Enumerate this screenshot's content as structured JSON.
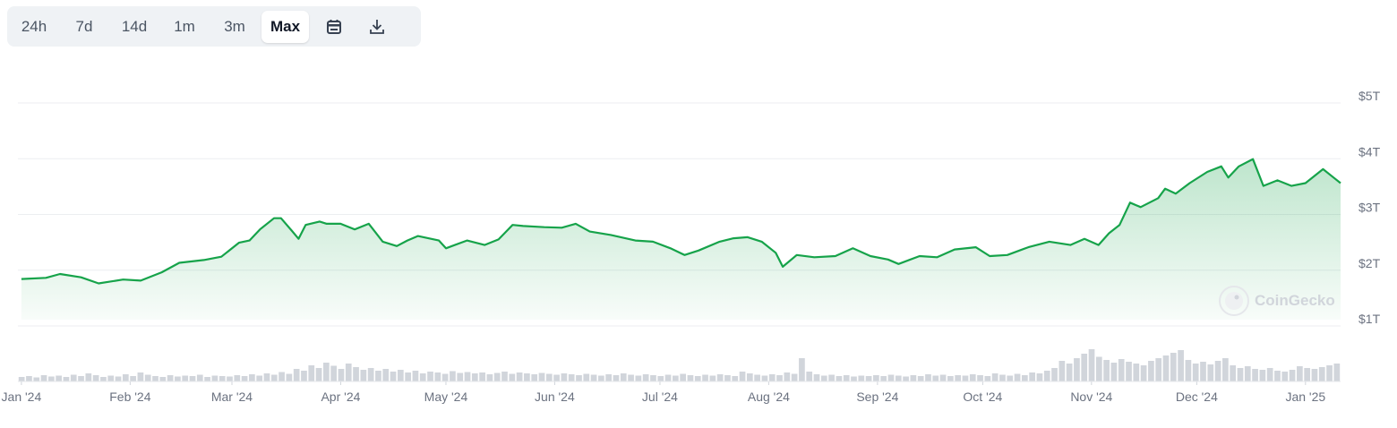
{
  "range_selector": {
    "options": [
      "24h",
      "7d",
      "14d",
      "1m",
      "3m",
      "Max"
    ],
    "selected": "Max",
    "calendar_icon": "calendar-icon",
    "download_icon": "download-icon"
  },
  "watermark": {
    "text": "CoinGecko",
    "icon": "coingecko-logo-icon"
  },
  "chart_data": {
    "type": "area",
    "title": "",
    "series": [
      {
        "color": "#16a34a",
        "points": [
          [
            "2024-01-01",
            1.73
          ],
          [
            "2024-01-08",
            1.75
          ],
          [
            "2024-01-12",
            1.82
          ],
          [
            "2024-01-18",
            1.76
          ],
          [
            "2024-01-23",
            1.65
          ],
          [
            "2024-01-30",
            1.72
          ],
          [
            "2024-02-04",
            1.7
          ],
          [
            "2024-02-10",
            1.85
          ],
          [
            "2024-02-15",
            2.02
          ],
          [
            "2024-02-22",
            2.07
          ],
          [
            "2024-02-27",
            2.13
          ],
          [
            "2024-03-03",
            2.38
          ],
          [
            "2024-03-06",
            2.42
          ],
          [
            "2024-03-09",
            2.62
          ],
          [
            "2024-03-13",
            2.82
          ],
          [
            "2024-03-15",
            2.82
          ],
          [
            "2024-03-18",
            2.6
          ],
          [
            "2024-03-20",
            2.45
          ],
          [
            "2024-03-22",
            2.7
          ],
          [
            "2024-03-26",
            2.76
          ],
          [
            "2024-03-28",
            2.72
          ],
          [
            "2024-04-01",
            2.72
          ],
          [
            "2024-04-05",
            2.62
          ],
          [
            "2024-04-09",
            2.72
          ],
          [
            "2024-04-13",
            2.4
          ],
          [
            "2024-04-17",
            2.32
          ],
          [
            "2024-04-20",
            2.42
          ],
          [
            "2024-04-23",
            2.5
          ],
          [
            "2024-04-29",
            2.42
          ],
          [
            "2024-05-01",
            2.28
          ],
          [
            "2024-05-07",
            2.42
          ],
          [
            "2024-05-12",
            2.34
          ],
          [
            "2024-05-16",
            2.44
          ],
          [
            "2024-05-20",
            2.7
          ],
          [
            "2024-05-23",
            2.68
          ],
          [
            "2024-05-29",
            2.66
          ],
          [
            "2024-06-03",
            2.65
          ],
          [
            "2024-06-07",
            2.72
          ],
          [
            "2024-06-11",
            2.58
          ],
          [
            "2024-06-17",
            2.52
          ],
          [
            "2024-06-24",
            2.42
          ],
          [
            "2024-06-29",
            2.4
          ],
          [
            "2024-07-04",
            2.28
          ],
          [
            "2024-07-08",
            2.16
          ],
          [
            "2024-07-12",
            2.24
          ],
          [
            "2024-07-18",
            2.4
          ],
          [
            "2024-07-22",
            2.46
          ],
          [
            "2024-07-26",
            2.48
          ],
          [
            "2024-07-30",
            2.4
          ],
          [
            "2024-08-03",
            2.2
          ],
          [
            "2024-08-05",
            1.95
          ],
          [
            "2024-08-09",
            2.16
          ],
          [
            "2024-08-14",
            2.12
          ],
          [
            "2024-08-20",
            2.14
          ],
          [
            "2024-08-25",
            2.28
          ],
          [
            "2024-08-30",
            2.14
          ],
          [
            "2024-09-04",
            2.08
          ],
          [
            "2024-09-07",
            2.0
          ],
          [
            "2024-09-13",
            2.14
          ],
          [
            "2024-09-18",
            2.12
          ],
          [
            "2024-09-23",
            2.26
          ],
          [
            "2024-09-29",
            2.3
          ],
          [
            "2024-10-03",
            2.14
          ],
          [
            "2024-10-08",
            2.16
          ],
          [
            "2024-10-14",
            2.3
          ],
          [
            "2024-10-20",
            2.4
          ],
          [
            "2024-10-26",
            2.34
          ],
          [
            "2024-10-30",
            2.45
          ],
          [
            "2024-11-03",
            2.34
          ],
          [
            "2024-11-06",
            2.55
          ],
          [
            "2024-11-09",
            2.7
          ],
          [
            "2024-11-12",
            3.1
          ],
          [
            "2024-11-15",
            3.02
          ],
          [
            "2024-11-20",
            3.18
          ],
          [
            "2024-11-22",
            3.35
          ],
          [
            "2024-11-25",
            3.26
          ],
          [
            "2024-11-29",
            3.45
          ],
          [
            "2024-12-04",
            3.65
          ],
          [
            "2024-12-08",
            3.75
          ],
          [
            "2024-12-10",
            3.55
          ],
          [
            "2024-12-13",
            3.75
          ],
          [
            "2024-12-17",
            3.88
          ],
          [
            "2024-12-20",
            3.4
          ],
          [
            "2024-12-24",
            3.5
          ],
          [
            "2024-12-28",
            3.4
          ],
          [
            "2025-01-01",
            3.45
          ],
          [
            "2025-01-06",
            3.7
          ],
          [
            "2025-01-09",
            3.55
          ],
          [
            "2025-01-11",
            3.45
          ]
        ]
      }
    ],
    "volume": {
      "color": "#d1d5db",
      "values": [
        0.1,
        0.12,
        0.09,
        0.14,
        0.11,
        0.13,
        0.1,
        0.15,
        0.12,
        0.18,
        0.14,
        0.1,
        0.13,
        0.11,
        0.16,
        0.12,
        0.2,
        0.15,
        0.12,
        0.1,
        0.14,
        0.11,
        0.13,
        0.12,
        0.15,
        0.1,
        0.13,
        0.12,
        0.11,
        0.14,
        0.12,
        0.16,
        0.13,
        0.18,
        0.15,
        0.21,
        0.17,
        0.28,
        0.24,
        0.36,
        0.3,
        0.42,
        0.35,
        0.28,
        0.4,
        0.32,
        0.26,
        0.3,
        0.24,
        0.28,
        0.22,
        0.26,
        0.2,
        0.24,
        0.18,
        0.22,
        0.2,
        0.17,
        0.23,
        0.19,
        0.21,
        0.18,
        0.2,
        0.16,
        0.19,
        0.22,
        0.17,
        0.2,
        0.18,
        0.16,
        0.19,
        0.17,
        0.15,
        0.18,
        0.16,
        0.14,
        0.17,
        0.15,
        0.13,
        0.16,
        0.14,
        0.18,
        0.15,
        0.13,
        0.16,
        0.14,
        0.12,
        0.15,
        0.13,
        0.17,
        0.14,
        0.12,
        0.15,
        0.13,
        0.16,
        0.14,
        0.12,
        0.22,
        0.18,
        0.15,
        0.13,
        0.16,
        0.14,
        0.2,
        0.17,
        0.52,
        0.22,
        0.16,
        0.13,
        0.15,
        0.12,
        0.14,
        0.11,
        0.13,
        0.12,
        0.14,
        0.12,
        0.15,
        0.13,
        0.11,
        0.14,
        0.12,
        0.16,
        0.13,
        0.15,
        0.12,
        0.14,
        0.13,
        0.16,
        0.14,
        0.12,
        0.18,
        0.15,
        0.13,
        0.17,
        0.14,
        0.2,
        0.18,
        0.24,
        0.3,
        0.46,
        0.4,
        0.52,
        0.62,
        0.72,
        0.55,
        0.48,
        0.42,
        0.5,
        0.44,
        0.4,
        0.36,
        0.46,
        0.52,
        0.58,
        0.64,
        0.7,
        0.48,
        0.4,
        0.44,
        0.38,
        0.46,
        0.52,
        0.36,
        0.3,
        0.34,
        0.28,
        0.26,
        0.3,
        0.24,
        0.22,
        0.26,
        0.34,
        0.3,
        0.28,
        0.32,
        0.36,
        0.4
      ]
    },
    "x_tick_labels": [
      "Jan '24",
      "Feb '24",
      "Mar '24",
      "Apr '24",
      "May '24",
      "Jun '24",
      "Jul '24",
      "Aug '24",
      "Sep '24",
      "Oct '24",
      "Nov '24",
      "Dec '24",
      "Jan '25"
    ],
    "x_tick_dates": [
      "2024-01-01",
      "2024-02-01",
      "2024-03-01",
      "2024-04-01",
      "2024-05-01",
      "2024-06-01",
      "2024-07-01",
      "2024-08-01",
      "2024-09-01",
      "2024-10-01",
      "2024-11-01",
      "2024-12-01",
      "2025-01-01"
    ],
    "x_range": [
      "2023-12-31",
      "2025-01-11"
    ],
    "y_tick_labels": [
      "$1T",
      "$2T",
      "$3T",
      "$4T",
      "$5T"
    ],
    "y_ticks": [
      1,
      2,
      3,
      4,
      5
    ],
    "ylim": [
      1,
      5
    ],
    "y_unit": "trillion USD",
    "grid": true
  }
}
